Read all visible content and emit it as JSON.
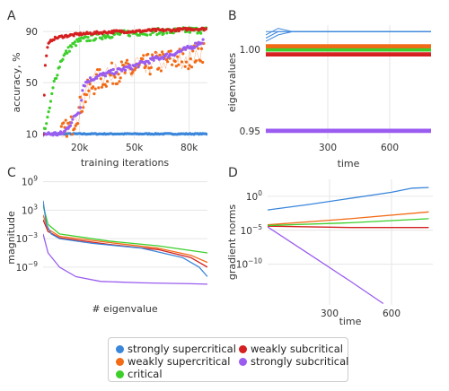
{
  "colors": {
    "strongly_supercritical": "#3a86db",
    "weakly_supercritical": "#f26b16",
    "critical": "#3ccf2a",
    "weakly_subcritical": "#d42020",
    "strongly_subcritical": "#9a5df0"
  },
  "legend": {
    "items": [
      {
        "label": "strongly supercritical",
        "color": "#3a86db"
      },
      {
        "label": "weakly supercritical",
        "color": "#f26b16"
      },
      {
        "label": "critical",
        "color": "#3ccf2a"
      },
      {
        "label": "weakly subcritical",
        "color": "#d42020"
      },
      {
        "label": "strongly subcritical",
        "color": "#9a5df0"
      }
    ]
  },
  "chart_data": [
    {
      "panel": "A",
      "type": "scatter",
      "xlabel": "training iterations",
      "ylabel": "accuracy, %",
      "xlim": [
        0,
        90000
      ],
      "ylim": [
        6,
        95
      ],
      "xticks": [
        {
          "v": 20000,
          "label": "20k"
        },
        {
          "v": 50000,
          "label": "50k"
        },
        {
          "v": 80000,
          "label": "80k"
        }
      ],
      "yticks": [
        {
          "v": 10,
          "label": "10"
        },
        {
          "v": 50,
          "label": "50"
        },
        {
          "v": 90,
          "label": "90"
        }
      ],
      "grid": true,
      "series": [
        {
          "key": "strongly_supercritical",
          "points": [
            [
              0,
              10
            ],
            [
              10000,
              10
            ],
            [
              20000,
              10
            ],
            [
              30000,
              10
            ],
            [
              40000,
              10
            ],
            [
              50000,
              10
            ],
            [
              60000,
              10
            ],
            [
              70000,
              10
            ],
            [
              80000,
              10
            ],
            [
              90000,
              10
            ]
          ]
        },
        {
          "key": "weakly_supercritical",
          "points": [
            [
              10000,
              10
            ],
            [
              15000,
              15
            ],
            [
              20000,
              30
            ],
            [
              25000,
              45
            ],
            [
              30000,
              52
            ],
            [
              35000,
              55
            ],
            [
              40000,
              58
            ],
            [
              50000,
              60
            ],
            [
              60000,
              65
            ],
            [
              70000,
              68
            ],
            [
              80000,
              70
            ],
            [
              88000,
              75
            ]
          ]
        },
        {
          "key": "critical",
          "points": [
            [
              0,
              10
            ],
            [
              3000,
              25
            ],
            [
              6000,
              50
            ],
            [
              10000,
              68
            ],
            [
              15000,
              78
            ],
            [
              20000,
              83
            ],
            [
              30000,
              86
            ],
            [
              40000,
              88
            ],
            [
              50000,
              89
            ],
            [
              60000,
              90
            ],
            [
              70000,
              90
            ],
            [
              80000,
              91
            ],
            [
              90000,
              91
            ]
          ]
        },
        {
          "key": "weakly_subcritical",
          "points": [
            [
              0,
              10
            ],
            [
              1000,
              60
            ],
            [
              2000,
              75
            ],
            [
              3000,
              80
            ],
            [
              5000,
              84
            ],
            [
              10000,
              86
            ],
            [
              20000,
              88
            ],
            [
              30000,
              89
            ],
            [
              40000,
              90
            ],
            [
              50000,
              90
            ],
            [
              60000,
              91
            ],
            [
              70000,
              91
            ],
            [
              80000,
              92
            ],
            [
              90000,
              92
            ]
          ]
        },
        {
          "key": "strongly_subcritical",
          "points": [
            [
              0,
              10
            ],
            [
              10000,
              10
            ],
            [
              12000,
              12
            ],
            [
              15000,
              18
            ],
            [
              18000,
              25
            ],
            [
              20000,
              28
            ],
            [
              22000,
              48
            ],
            [
              25000,
              52
            ],
            [
              30000,
              55
            ],
            [
              40000,
              59
            ],
            [
              50000,
              63
            ],
            [
              60000,
              68
            ],
            [
              70000,
              72
            ],
            [
              80000,
              77
            ],
            [
              88000,
              83
            ]
          ]
        }
      ]
    },
    {
      "panel": "B",
      "type": "line",
      "xlabel": "time",
      "ylabel": "eigenvalues",
      "xlim": [
        0,
        800
      ],
      "ylim": [
        0.945,
        1.015
      ],
      "xticks": [
        {
          "v": 300,
          "label": "300"
        },
        {
          "v": 600,
          "label": "600"
        }
      ],
      "yticks": [
        {
          "v": 0.95,
          "label": "0.95"
        },
        {
          "v": 1.0,
          "label": "1.00"
        }
      ],
      "grid": true,
      "series": [
        {
          "key": "strongly_supercritical",
          "y": [
            1.005,
            1.009,
            1.011
          ]
        },
        {
          "key": "weakly_supercritical",
          "y": [
            1.001,
            1.002,
            1.003
          ]
        },
        {
          "key": "critical",
          "y": [
            0.999,
            1.0,
            1.001
          ]
        },
        {
          "key": "weakly_subcritical",
          "y": [
            0.996,
            0.997,
            0.998
          ]
        },
        {
          "key": "strongly_subcritical",
          "y": [
            0.949,
            0.95,
            0.951
          ]
        }
      ]
    },
    {
      "panel": "C",
      "type": "line",
      "xlabel": "# eigenvalue",
      "ylabel": "magnitude",
      "yscale": "log",
      "xlim": [
        0,
        100
      ],
      "ylim_exp": [
        -14.5,
        9.5
      ],
      "yticks": [
        {
          "v": 9,
          "label": "10",
          "exp": "9"
        },
        {
          "v": 3,
          "label": "10",
          "exp": "3"
        },
        {
          "v": -3,
          "label": "10",
          "exp": "−3"
        },
        {
          "v": -9,
          "label": "10",
          "exp": "−9"
        }
      ],
      "grid": true,
      "series": [
        {
          "key": "strongly_supercritical",
          "points": [
            [
              0,
              5
            ],
            [
              2,
              0
            ],
            [
              5,
              -2
            ],
            [
              10,
              -3
            ],
            [
              30,
              -4
            ],
            [
              60,
              -5
            ],
            [
              85,
              -7
            ],
            [
              95,
              -9
            ],
            [
              100,
              -11
            ]
          ]
        },
        {
          "key": "weakly_supercritical",
          "points": [
            [
              0,
              2
            ],
            [
              3,
              -1
            ],
            [
              10,
              -2.5
            ],
            [
              40,
              -3.8
            ],
            [
              70,
              -5
            ],
            [
              90,
              -6.5
            ],
            [
              100,
              -8
            ]
          ]
        },
        {
          "key": "critical",
          "points": [
            [
              0,
              4
            ],
            [
              3,
              0
            ],
            [
              10,
              -2
            ],
            [
              40,
              -3.5
            ],
            [
              70,
              -4.5
            ],
            [
              90,
              -5.5
            ],
            [
              100,
              -6
            ]
          ]
        },
        {
          "key": "weakly_subcritical",
          "points": [
            [
              0,
              1
            ],
            [
              3,
              -1.5
            ],
            [
              10,
              -2.8
            ],
            [
              40,
              -4.2
            ],
            [
              70,
              -5.3
            ],
            [
              90,
              -7
            ],
            [
              100,
              -9
            ]
          ]
        },
        {
          "key": "strongly_subcritical",
          "points": [
            [
              0,
              -2
            ],
            [
              3,
              -6
            ],
            [
              10,
              -9
            ],
            [
              20,
              -11
            ],
            [
              35,
              -12
            ],
            [
              60,
              -12.3
            ],
            [
              90,
              -12.5
            ],
            [
              100,
              -12.6
            ]
          ]
        }
      ]
    },
    {
      "panel": "D",
      "type": "line",
      "xlabel": "time",
      "ylabel": "gradient norms",
      "yscale": "log",
      "xlim": [
        0,
        800
      ],
      "ylim_exp": [
        -16,
        2.5
      ],
      "xticks": [
        {
          "v": 300,
          "label": "300"
        },
        {
          "v": 600,
          "label": "600"
        }
      ],
      "yticks": [
        {
          "v": 0,
          "label": "10",
          "exp": "0"
        },
        {
          "v": -5,
          "label": "10",
          "exp": "−5"
        },
        {
          "v": -10,
          "label": "10",
          "exp": "−10"
        }
      ],
      "grid": true,
      "series": [
        {
          "key": "strongly_supercritical",
          "points": [
            [
              0,
              -2
            ],
            [
              200,
              -1.2
            ],
            [
              400,
              -0.3
            ],
            [
              600,
              0.6
            ],
            [
              700,
              1.2
            ],
            [
              780,
              1.3
            ]
          ]
        },
        {
          "key": "weakly_supercritical",
          "points": [
            [
              0,
              -4.2
            ],
            [
              400,
              -3.3
            ],
            [
              780,
              -2.3
            ]
          ]
        },
        {
          "key": "critical",
          "points": [
            [
              0,
              -4.3
            ],
            [
              400,
              -3.9
            ],
            [
              780,
              -3.3
            ]
          ]
        },
        {
          "key": "weakly_subcritical",
          "points": [
            [
              0,
              -4.4
            ],
            [
              400,
              -4.6
            ],
            [
              780,
              -4.6
            ]
          ]
        },
        {
          "key": "strongly_subcritical",
          "points": [
            [
              0,
              -4.5
            ],
            [
              200,
              -8.5
            ],
            [
              400,
              -12.5
            ],
            [
              560,
              -15.8
            ]
          ]
        }
      ]
    }
  ],
  "panel_letters": [
    "A",
    "B",
    "C",
    "D"
  ]
}
